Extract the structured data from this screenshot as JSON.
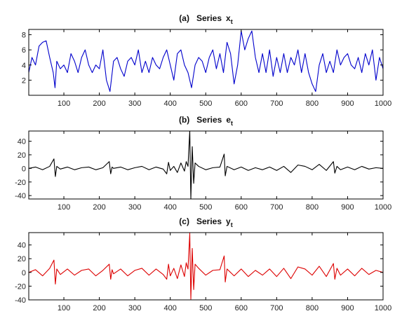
{
  "chart_data": [
    {
      "type": "line",
      "title": {
        "prefix": "(a)",
        "text": "Series",
        "var": "x",
        "sub": "t"
      },
      "xlim": [
        1,
        1000
      ],
      "ylim": [
        0,
        8.7
      ],
      "xticks": [
        100,
        200,
        300,
        400,
        500,
        600,
        700,
        800,
        900,
        1000
      ],
      "yticks": [
        2,
        4,
        6,
        8
      ],
      "color": "#0000cc",
      "series": [
        {
          "x": [
            1,
            10,
            20,
            30,
            40,
            50,
            60,
            70,
            75,
            80,
            90,
            100,
            110,
            120,
            130,
            140,
            150,
            160,
            170,
            180,
            190,
            200,
            210,
            220,
            230,
            240,
            250,
            260,
            270,
            280,
            290,
            300,
            310,
            320,
            330,
            340,
            350,
            360,
            370,
            380,
            390,
            400,
            410,
            420,
            430,
            440,
            450,
            460,
            470,
            480,
            490,
            500,
            510,
            520,
            530,
            540,
            550,
            560,
            570,
            580,
            590,
            600,
            610,
            620,
            630,
            640,
            650,
            660,
            670,
            680,
            690,
            700,
            710,
            720,
            730,
            740,
            750,
            760,
            770,
            780,
            790,
            800,
            810,
            820,
            830,
            840,
            850,
            860,
            870,
            880,
            890,
            900,
            910,
            920,
            930,
            940,
            950,
            960,
            970,
            980,
            990,
            1000
          ],
          "y": [
            3.0,
            5.0,
            4.0,
            6.5,
            7.0,
            7.2,
            5.0,
            3.0,
            1.0,
            4.5,
            3.5,
            4.0,
            3.0,
            5.5,
            4.5,
            3.0,
            5.0,
            6.0,
            4.0,
            3.0,
            4.0,
            3.5,
            6.0,
            2.0,
            0.5,
            4.5,
            5.0,
            3.5,
            2.5,
            4.5,
            5.0,
            4.0,
            6.0,
            3.0,
            4.5,
            3.0,
            5.0,
            4.0,
            3.5,
            5.0,
            6.0,
            4.0,
            2.0,
            5.5,
            6.0,
            4.0,
            3.0,
            1.0,
            4.0,
            5.0,
            4.5,
            3.0,
            5.0,
            6.0,
            3.5,
            5.5,
            3.0,
            7.0,
            5.5,
            1.5,
            4.0,
            8.5,
            6.0,
            7.5,
            8.5,
            5.0,
            3.0,
            5.5,
            3.0,
            6.0,
            2.5,
            5.0,
            3.0,
            5.5,
            3.0,
            5.0,
            4.0,
            6.0,
            3.0,
            5.5,
            3.0,
            1.5,
            0.5,
            4.0,
            5.5,
            3.0,
            4.5,
            3.0,
            6.0,
            4.0,
            5.0,
            5.5,
            4.0,
            3.5,
            5.0,
            3.0,
            5.5,
            4.0,
            6.0,
            2.0,
            5.0,
            3.5
          ]
        }
      ]
    },
    {
      "type": "line",
      "title": {
        "prefix": "(b)",
        "text": "Series",
        "var": "e",
        "sub": "t"
      },
      "xlim": [
        1,
        1000
      ],
      "ylim": [
        -45,
        55
      ],
      "xticks": [
        100,
        200,
        300,
        400,
        500,
        600,
        700,
        800,
        900,
        1000
      ],
      "yticks": [
        -40,
        -20,
        0,
        20,
        40
      ],
      "color": "#000000",
      "series": [
        {
          "x": [
            1,
            20,
            40,
            60,
            72,
            76,
            80,
            90,
            110,
            130,
            150,
            170,
            190,
            210,
            228,
            232,
            236,
            240,
            260,
            280,
            300,
            320,
            340,
            360,
            380,
            390,
            395,
            400,
            410,
            420,
            430,
            440,
            445,
            450,
            455,
            458,
            462,
            466,
            470,
            480,
            500,
            520,
            540,
            552,
            555,
            560,
            580,
            600,
            620,
            640,
            660,
            680,
            700,
            720,
            740,
            760,
            780,
            800,
            820,
            840,
            860,
            864,
            870,
            880,
            900,
            920,
            940,
            960,
            980,
            1000
          ],
          "y": [
            0,
            2,
            -2,
            3,
            14,
            -12,
            3,
            -1,
            2,
            -2,
            1,
            2,
            -2,
            1,
            10,
            -8,
            2,
            0,
            2,
            -2,
            1,
            3,
            -2,
            2,
            -1,
            -8,
            9,
            -3,
            3,
            -6,
            8,
            -4,
            10,
            3,
            56,
            -45,
            32,
            -22,
            8,
            3,
            -2,
            1,
            2,
            21,
            -11,
            3,
            -2,
            2,
            -3,
            1,
            -2,
            2,
            -3,
            3,
            -6,
            5,
            3,
            -2,
            6,
            -3,
            10,
            -7,
            3,
            -2,
            2,
            -2,
            3,
            -1,
            1,
            0
          ]
        }
      ]
    },
    {
      "type": "line",
      "title": {
        "prefix": "(c)",
        "text": "Series",
        "var": "y",
        "sub": "t"
      },
      "xlim": [
        1,
        1000
      ],
      "ylim": [
        -40,
        58
      ],
      "xticks": [
        100,
        200,
        300,
        400,
        500,
        600,
        700,
        800,
        900,
        1000
      ],
      "yticks": [
        -40,
        -20,
        0,
        20,
        40
      ],
      "color": "#dd0000",
      "series": [
        {
          "x": [
            1,
            20,
            40,
            60,
            72,
            76,
            80,
            90,
            110,
            130,
            150,
            170,
            190,
            210,
            228,
            232,
            236,
            240,
            260,
            280,
            300,
            320,
            340,
            360,
            380,
            390,
            395,
            400,
            410,
            420,
            430,
            440,
            445,
            450,
            455,
            458,
            462,
            466,
            470,
            480,
            500,
            520,
            540,
            552,
            555,
            560,
            580,
            600,
            620,
            640,
            660,
            680,
            700,
            720,
            740,
            760,
            780,
            800,
            820,
            840,
            860,
            864,
            870,
            880,
            900,
            920,
            940,
            960,
            980,
            1000
          ],
          "y": [
            0,
            4,
            -5,
            6,
            18,
            -17,
            5,
            -3,
            5,
            -4,
            3,
            5,
            -5,
            3,
            12,
            -10,
            4,
            -2,
            5,
            -5,
            3,
            6,
            -4,
            5,
            -3,
            -10,
            12,
            -5,
            6,
            -9,
            11,
            -6,
            14,
            5,
            57,
            -39,
            35,
            -25,
            12,
            6,
            -4,
            3,
            4,
            24,
            -14,
            5,
            -5,
            5,
            -6,
            3,
            -4,
            5,
            -6,
            6,
            -9,
            8,
            5,
            -4,
            9,
            -6,
            13,
            -10,
            6,
            -4,
            5,
            -5,
            6,
            -3,
            3,
            0
          ]
        }
      ]
    }
  ]
}
